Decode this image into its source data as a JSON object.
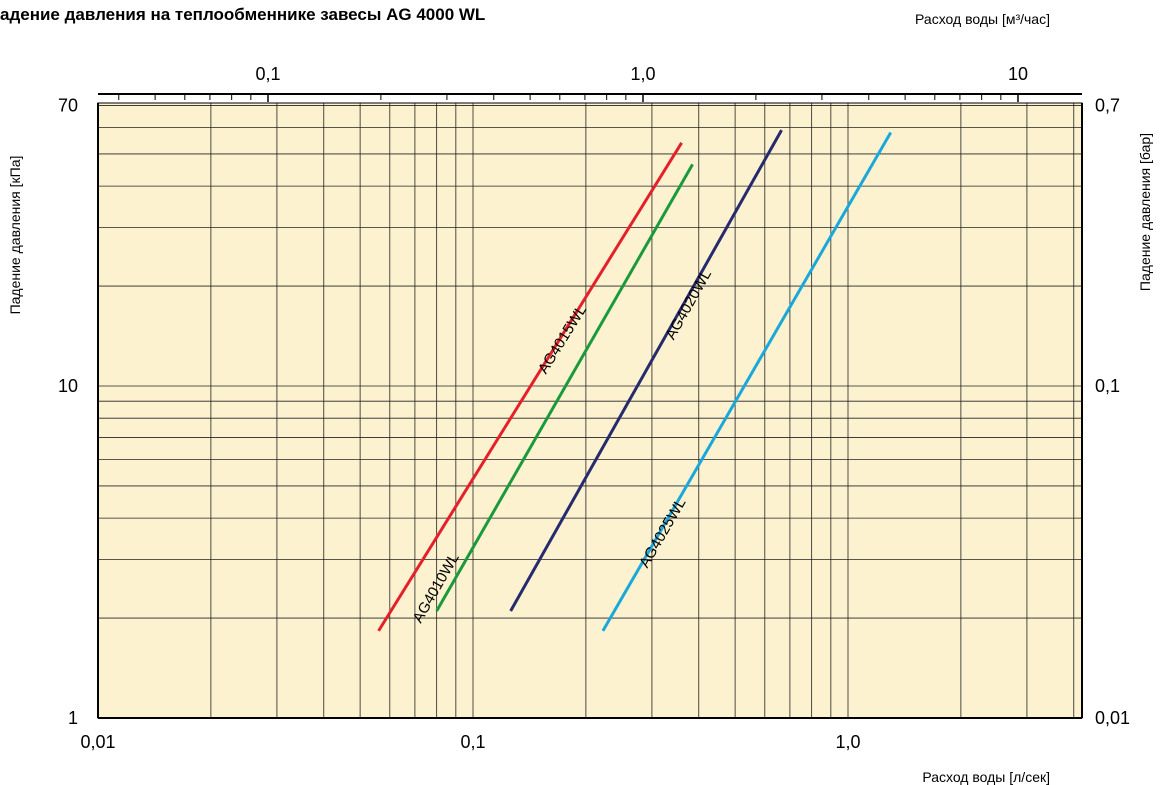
{
  "title": "адение давления на теплообменнике завесы AG 4000 WL",
  "chart_data": {
    "type": "line",
    "title": "адение давления на теплообменнике завесы AG 4000 WL",
    "xlabel": "Расход воды [л/сек]",
    "xlabel_top": "Расход воды [м³/час]",
    "ylabel": "Падение давления [кПа]",
    "ylabel_right": "Падение давления [бар]",
    "x_scale": "log",
    "y_scale": "log",
    "xlim": [
      0.01,
      4.8
    ],
    "ylim": [
      1,
      70
    ],
    "grid": true,
    "x_ticks": [
      0.01,
      0.1,
      1.0
    ],
    "x_tick_labels": [
      "0,01",
      "0,1",
      "1,0"
    ],
    "x_top_ticks": [
      0.1,
      1.0,
      10
    ],
    "x_top_tick_labels": [
      "0,1",
      "1,0",
      "10"
    ],
    "y_ticks": [
      1,
      10,
      70
    ],
    "y_tick_labels": [
      "1",
      "10",
      "70"
    ],
    "y_right_ticks": [
      1,
      10,
      70
    ],
    "y_right_tick_labels": [
      "0,01",
      "0,1",
      "0,7"
    ],
    "series": [
      {
        "name": "AG4015WL",
        "color": "#e4202a",
        "x": [
          0.056,
          0.36
        ],
        "y": [
          1.83,
          54
        ]
      },
      {
        "name": "AG4010WL",
        "color": "#1a9a3c",
        "x": [
          0.08,
          0.385
        ],
        "y": [
          2.1,
          46.5
        ]
      },
      {
        "name": "AG4020WL",
        "color": "#262a6e",
        "x": [
          0.126,
          0.665
        ],
        "y": [
          2.1,
          59
        ]
      },
      {
        "name": "AG4025WL",
        "color": "#1aa8dc",
        "x": [
          0.222,
          1.3
        ],
        "y": [
          1.83,
          58
        ]
      }
    ]
  }
}
